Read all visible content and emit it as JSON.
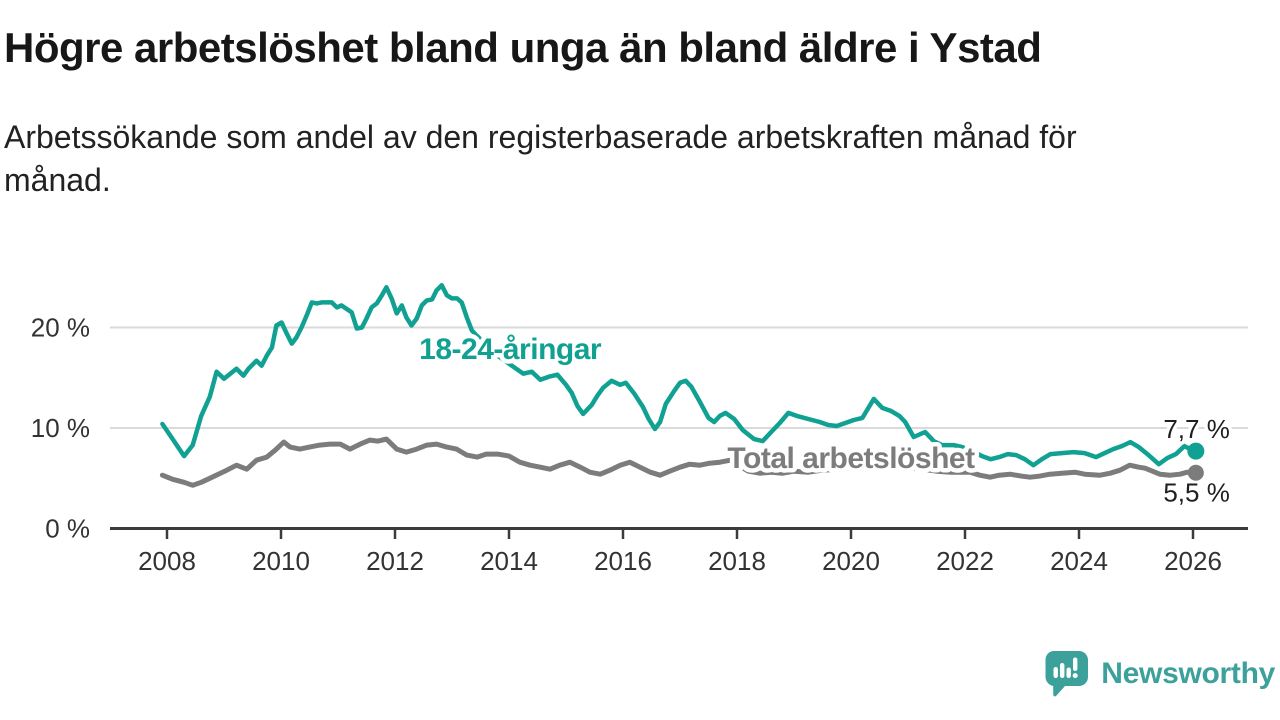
{
  "header": {
    "title": "Högre arbetslöshet bland unga än bland äldre i Ystad",
    "subtitle_lines": [
      "Arbetssökande som andel av den registerbaserade arbetskraften månad för",
      "månad."
    ]
  },
  "footer": {
    "brand": "Newsworthy",
    "logo_icon": "newsworthy-speech-bubble-chart-icon"
  },
  "colors": {
    "young_line": "#11a192",
    "total_line": "#7c7c7c",
    "grid": "#dadada",
    "axis": "#3b3b3b",
    "tick_text": "#333333",
    "value_text": "#1f1f1f",
    "brand": "#3da19b",
    "halo": "#ffffff"
  },
  "chart_data": {
    "type": "line",
    "title": "Högre arbetslöshet bland unga än bland äldre i Ystad",
    "subtitle": "Arbetssökande som andel av den registerbaserade arbetskraften månad för månad.",
    "unit": "%",
    "grid": "horizontal-only",
    "legend_position": "inline-labels-on-lines",
    "x_axis": {
      "range": [
        2007.75,
        2026.4
      ],
      "ticks": [
        {
          "value": 2008,
          "label": "2008"
        },
        {
          "value": 2010,
          "label": "2010"
        },
        {
          "value": 2012,
          "label": "2012"
        },
        {
          "value": 2014,
          "label": "2014"
        },
        {
          "value": 2016,
          "label": "2016"
        },
        {
          "value": 2018,
          "label": "2018"
        },
        {
          "value": 2020,
          "label": "2020"
        },
        {
          "value": 2022,
          "label": "2022"
        },
        {
          "value": 2024,
          "label": "2024"
        },
        {
          "value": 2026,
          "label": "2026"
        }
      ]
    },
    "y_axis": {
      "range": [
        0,
        26
      ],
      "ticks": [
        {
          "value": 0,
          "label": "0 %"
        },
        {
          "value": 10,
          "label": "10 %"
        },
        {
          "value": 20,
          "label": "20 %"
        }
      ]
    },
    "series": [
      {
        "name": "Total arbetslöshet",
        "color": "#7c7c7c",
        "stroke_width": 5,
        "label_anchor": {
          "year": 2020.0,
          "value": 6.0
        },
        "end_label": "5,5 %",
        "end_value": 5.5,
        "end_label_dy": 29,
        "dot_radius": 8,
        "points": [
          [
            2007.92,
            5.3
          ],
          [
            2008.1,
            4.9
          ],
          [
            2008.3,
            4.6
          ],
          [
            2008.45,
            4.3
          ],
          [
            2008.6,
            4.6
          ],
          [
            2008.75,
            5.0
          ],
          [
            2008.9,
            5.4
          ],
          [
            2009.05,
            5.8
          ],
          [
            2009.22,
            6.3
          ],
          [
            2009.4,
            5.9
          ],
          [
            2009.57,
            6.8
          ],
          [
            2009.75,
            7.1
          ],
          [
            2009.9,
            7.8
          ],
          [
            2010.05,
            8.6
          ],
          [
            2010.16,
            8.1
          ],
          [
            2010.33,
            7.9
          ],
          [
            2010.5,
            8.1
          ],
          [
            2010.68,
            8.3
          ],
          [
            2010.86,
            8.4
          ],
          [
            2011.04,
            8.4
          ],
          [
            2011.21,
            7.9
          ],
          [
            2011.39,
            8.4
          ],
          [
            2011.56,
            8.8
          ],
          [
            2011.7,
            8.7
          ],
          [
            2011.85,
            8.9
          ],
          [
            2012.03,
            7.9
          ],
          [
            2012.2,
            7.6
          ],
          [
            2012.38,
            7.9
          ],
          [
            2012.56,
            8.3
          ],
          [
            2012.73,
            8.4
          ],
          [
            2012.91,
            8.1
          ],
          [
            2013.08,
            7.9
          ],
          [
            2013.26,
            7.3
          ],
          [
            2013.44,
            7.1
          ],
          [
            2013.6,
            7.4
          ],
          [
            2013.8,
            7.4
          ],
          [
            2014.0,
            7.2
          ],
          [
            2014.19,
            6.6
          ],
          [
            2014.37,
            6.3
          ],
          [
            2014.55,
            6.1
          ],
          [
            2014.72,
            5.9
          ],
          [
            2014.89,
            6.3
          ],
          [
            2015.07,
            6.6
          ],
          [
            2015.25,
            6.1
          ],
          [
            2015.42,
            5.6
          ],
          [
            2015.6,
            5.4
          ],
          [
            2015.77,
            5.8
          ],
          [
            2015.95,
            6.3
          ],
          [
            2016.12,
            6.6
          ],
          [
            2016.3,
            6.1
          ],
          [
            2016.48,
            5.6
          ],
          [
            2016.65,
            5.3
          ],
          [
            2016.82,
            5.7
          ],
          [
            2017.0,
            6.1
          ],
          [
            2017.17,
            6.4
          ],
          [
            2017.35,
            6.3
          ],
          [
            2017.52,
            6.5
          ],
          [
            2017.7,
            6.6
          ],
          [
            2017.88,
            6.8
          ],
          [
            2018.05,
            6.2
          ],
          [
            2018.2,
            5.7
          ],
          [
            2018.4,
            5.5
          ],
          [
            2018.6,
            5.6
          ],
          [
            2018.8,
            5.5
          ],
          [
            2019.0,
            5.7
          ],
          [
            2019.25,
            5.6
          ],
          [
            2019.5,
            5.8
          ],
          [
            2019.75,
            5.9
          ],
          [
            2020.0,
            6.1
          ],
          [
            2020.2,
            6.4
          ],
          [
            2020.4,
            6.6
          ],
          [
            2020.6,
            6.5
          ],
          [
            2020.8,
            6.3
          ],
          [
            2021.0,
            6.1
          ],
          [
            2021.25,
            5.9
          ],
          [
            2021.5,
            5.7
          ],
          [
            2021.75,
            5.6
          ],
          [
            2021.95,
            5.6
          ],
          [
            2022.09,
            5.6
          ],
          [
            2022.26,
            5.3
          ],
          [
            2022.44,
            5.1
          ],
          [
            2022.6,
            5.3
          ],
          [
            2022.79,
            5.4
          ],
          [
            2023.0,
            5.2
          ],
          [
            2023.14,
            5.1
          ],
          [
            2023.3,
            5.2
          ],
          [
            2023.49,
            5.4
          ],
          [
            2023.7,
            5.5
          ],
          [
            2023.93,
            5.6
          ],
          [
            2024.1,
            5.4
          ],
          [
            2024.37,
            5.3
          ],
          [
            2024.55,
            5.5
          ],
          [
            2024.72,
            5.8
          ],
          [
            2024.89,
            6.3
          ],
          [
            2025.05,
            6.1
          ],
          [
            2025.16,
            6.0
          ],
          [
            2025.42,
            5.4
          ],
          [
            2025.6,
            5.3
          ],
          [
            2025.77,
            5.4
          ],
          [
            2025.9,
            5.6
          ],
          [
            2026.05,
            5.55
          ]
        ]
      },
      {
        "name": "18-24-åringar",
        "color": "#11a192",
        "stroke_width": 4.5,
        "label_anchor": {
          "year": 2014.02,
          "value": 16.85
        },
        "end_label": "7,7 %",
        "end_value": 7.7,
        "end_label_dy": -13,
        "dot_radius": 8.5,
        "points": [
          [
            2007.92,
            10.4
          ],
          [
            2008.1,
            8.9
          ],
          [
            2008.3,
            7.2
          ],
          [
            2008.45,
            8.3
          ],
          [
            2008.6,
            11.2
          ],
          [
            2008.75,
            13.1
          ],
          [
            2008.87,
            15.6
          ],
          [
            2009.0,
            14.9
          ],
          [
            2009.22,
            15.9
          ],
          [
            2009.34,
            15.2
          ],
          [
            2009.43,
            15.9
          ],
          [
            2009.57,
            16.7
          ],
          [
            2009.66,
            16.2
          ],
          [
            2009.75,
            17.2
          ],
          [
            2009.84,
            18.0
          ],
          [
            2009.92,
            20.2
          ],
          [
            2010.01,
            20.5
          ],
          [
            2010.1,
            19.4
          ],
          [
            2010.19,
            18.4
          ],
          [
            2010.27,
            19.0
          ],
          [
            2010.36,
            20.0
          ],
          [
            2010.45,
            21.2
          ],
          [
            2010.54,
            22.5
          ],
          [
            2010.63,
            22.4
          ],
          [
            2010.71,
            22.5
          ],
          [
            2010.89,
            22.5
          ],
          [
            2010.98,
            22.0
          ],
          [
            2011.06,
            22.2
          ],
          [
            2011.24,
            21.5
          ],
          [
            2011.33,
            19.9
          ],
          [
            2011.42,
            20.0
          ],
          [
            2011.5,
            20.9
          ],
          [
            2011.59,
            22.0
          ],
          [
            2011.68,
            22.4
          ],
          [
            2011.77,
            23.2
          ],
          [
            2011.85,
            24.0
          ],
          [
            2011.94,
            22.9
          ],
          [
            2012.03,
            21.4
          ],
          [
            2012.12,
            22.2
          ],
          [
            2012.2,
            21.0
          ],
          [
            2012.29,
            20.2
          ],
          [
            2012.38,
            20.9
          ],
          [
            2012.47,
            22.2
          ],
          [
            2012.56,
            22.7
          ],
          [
            2012.65,
            22.8
          ],
          [
            2012.73,
            23.7
          ],
          [
            2012.82,
            24.2
          ],
          [
            2012.91,
            23.2
          ],
          [
            2013.0,
            22.9
          ],
          [
            2013.09,
            22.9
          ],
          [
            2013.17,
            22.5
          ],
          [
            2013.26,
            21.0
          ],
          [
            2013.35,
            19.7
          ],
          [
            2013.43,
            19.2
          ],
          [
            2013.6,
            18.3
          ],
          [
            2013.8,
            17.2
          ],
          [
            2014.0,
            16.4
          ],
          [
            2014.1,
            16.0
          ],
          [
            2014.25,
            15.4
          ],
          [
            2014.4,
            15.6
          ],
          [
            2014.55,
            14.8
          ],
          [
            2014.7,
            15.1
          ],
          [
            2014.85,
            15.3
          ],
          [
            2015.0,
            14.3
          ],
          [
            2015.1,
            13.5
          ],
          [
            2015.2,
            12.2
          ],
          [
            2015.3,
            11.4
          ],
          [
            2015.45,
            12.3
          ],
          [
            2015.55,
            13.2
          ],
          [
            2015.65,
            14.0
          ],
          [
            2015.8,
            14.7
          ],
          [
            2015.95,
            14.3
          ],
          [
            2016.05,
            14.5
          ],
          [
            2016.2,
            13.4
          ],
          [
            2016.35,
            12.1
          ],
          [
            2016.45,
            10.9
          ],
          [
            2016.56,
            9.9
          ],
          [
            2016.65,
            10.6
          ],
          [
            2016.75,
            12.4
          ],
          [
            2016.9,
            13.7
          ],
          [
            2017.0,
            14.5
          ],
          [
            2017.1,
            14.7
          ],
          [
            2017.2,
            14.1
          ],
          [
            2017.35,
            12.6
          ],
          [
            2017.5,
            11.0
          ],
          [
            2017.6,
            10.6
          ],
          [
            2017.7,
            11.2
          ],
          [
            2017.8,
            11.5
          ],
          [
            2017.95,
            10.9
          ],
          [
            2018.1,
            9.8
          ],
          [
            2018.3,
            8.9
          ],
          [
            2018.45,
            8.7
          ],
          [
            2018.6,
            9.6
          ],
          [
            2018.75,
            10.5
          ],
          [
            2018.9,
            11.5
          ],
          [
            2019.05,
            11.2
          ],
          [
            2019.25,
            10.9
          ],
          [
            2019.45,
            10.6
          ],
          [
            2019.6,
            10.3
          ],
          [
            2019.75,
            10.2
          ],
          [
            2019.9,
            10.5
          ],
          [
            2020.05,
            10.8
          ],
          [
            2020.2,
            11.0
          ],
          [
            2020.4,
            12.9
          ],
          [
            2020.55,
            12.0
          ],
          [
            2020.7,
            11.7
          ],
          [
            2020.85,
            11.2
          ],
          [
            2020.95,
            10.6
          ],
          [
            2021.1,
            9.1
          ],
          [
            2021.3,
            9.6
          ],
          [
            2021.45,
            8.7
          ],
          [
            2021.6,
            8.3
          ],
          [
            2021.8,
            8.3
          ],
          [
            2021.95,
            8.1
          ],
          [
            2022.1,
            7.8
          ],
          [
            2022.3,
            7.2
          ],
          [
            2022.45,
            6.9
          ],
          [
            2022.6,
            7.1
          ],
          [
            2022.75,
            7.4
          ],
          [
            2022.9,
            7.3
          ],
          [
            2023.05,
            6.9
          ],
          [
            2023.2,
            6.3
          ],
          [
            2023.35,
            6.9
          ],
          [
            2023.5,
            7.4
          ],
          [
            2023.7,
            7.5
          ],
          [
            2023.9,
            7.6
          ],
          [
            2024.1,
            7.5
          ],
          [
            2024.3,
            7.1
          ],
          [
            2024.45,
            7.5
          ],
          [
            2024.6,
            7.9
          ],
          [
            2024.75,
            8.2
          ],
          [
            2024.9,
            8.6
          ],
          [
            2025.05,
            8.1
          ],
          [
            2025.2,
            7.4
          ],
          [
            2025.4,
            6.4
          ],
          [
            2025.55,
            7.0
          ],
          [
            2025.7,
            7.4
          ],
          [
            2025.85,
            8.2
          ],
          [
            2025.95,
            7.9
          ],
          [
            2026.05,
            7.7
          ]
        ]
      }
    ]
  }
}
